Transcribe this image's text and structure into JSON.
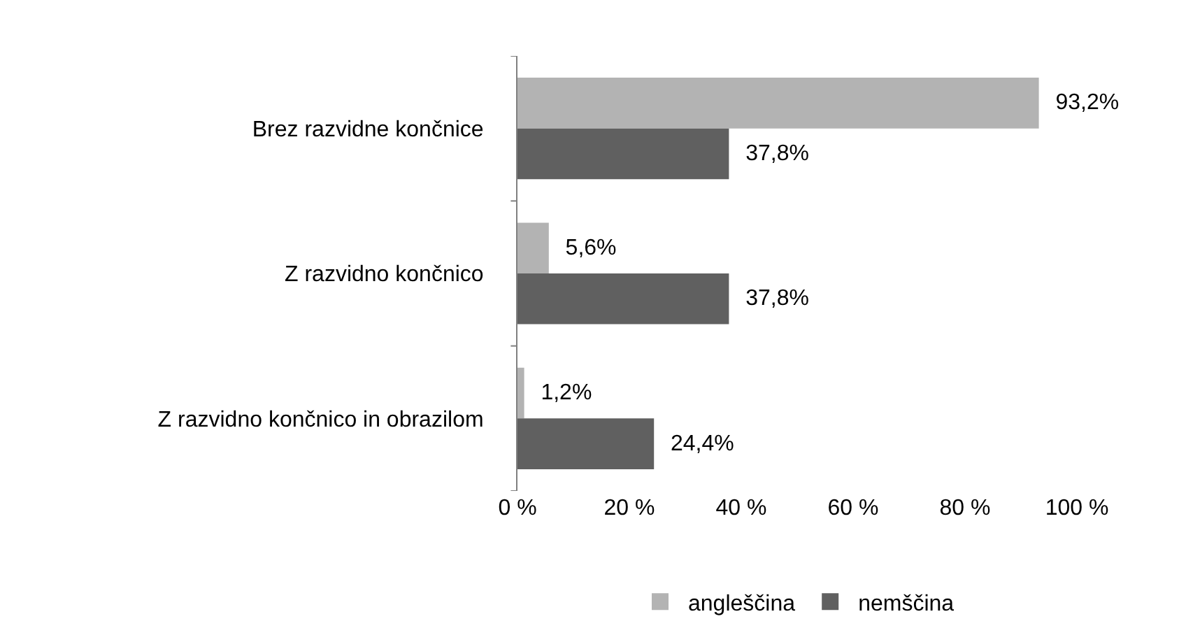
{
  "chart_data": {
    "type": "bar",
    "orientation": "horizontal",
    "categories": [
      "Brez razvidne končnice",
      "Z razvidno končnico",
      "Z razvidno končnico in obrazilom"
    ],
    "series": [
      {
        "name": "angleščina",
        "color": "#b3b3b3",
        "values": [
          93.2,
          5.6,
          1.2
        ],
        "value_labels": [
          "93,2%",
          "5,6%",
          "1,2%"
        ]
      },
      {
        "name": "nemščina",
        "color": "#606060",
        "values": [
          37.8,
          37.8,
          24.4
        ],
        "value_labels": [
          "37,8%",
          "37,8%",
          "24,4%"
        ]
      }
    ],
    "xlim": [
      0,
      100
    ],
    "xticks": [
      {
        "value": 0,
        "label": "0 %"
      },
      {
        "value": 20,
        "label": "20 %"
      },
      {
        "value": 40,
        "label": "40 %"
      },
      {
        "value": 60,
        "label": "60 %"
      },
      {
        "value": 80,
        "label": "80 %"
      },
      {
        "value": 100,
        "label": "100 %"
      }
    ],
    "legend": "bottom"
  }
}
